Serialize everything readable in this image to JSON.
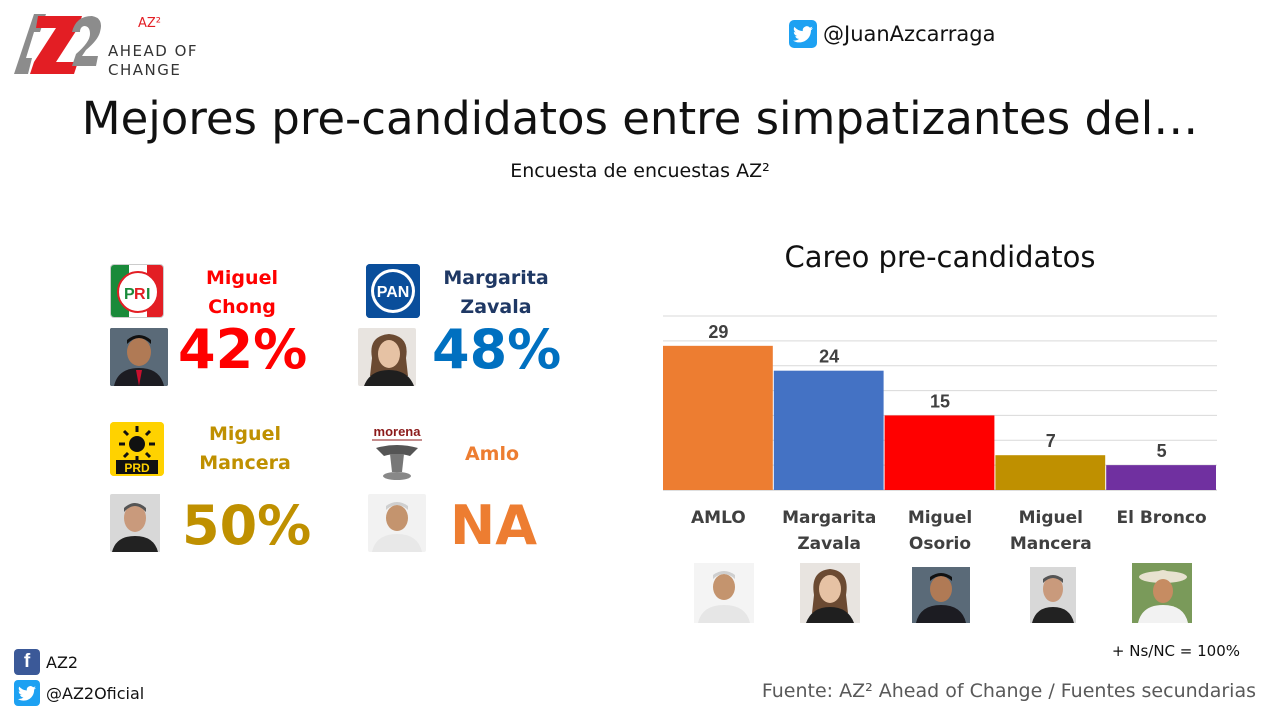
{
  "brand": {
    "mark": "AZ2",
    "sup": "AZ²",
    "line1": "AHEAD OF",
    "line2": "CHANGE"
  },
  "twitter_handle": "@JuanAzcarraga",
  "title": "Mejores pre-candidatos entre simpatizantes del…",
  "subtitle": "Encuesta de encuestas AZ²",
  "candidates": [
    {
      "party": "PRI",
      "name_line1": "Miguel",
      "name_line2": "Chong",
      "percent": "42%",
      "color": "#ff0000"
    },
    {
      "party": "PAN",
      "name_line1": "Margarita",
      "name_line2": "Zavala",
      "percent": "48%",
      "color": "#0070c0"
    },
    {
      "party": "PRD",
      "name_line1": "Miguel",
      "name_line2": "Mancera",
      "percent": "50%",
      "color": "#bf9000"
    },
    {
      "party": "morena",
      "name_line1": "Amlo",
      "name_line2": "",
      "percent": "NA",
      "color": "#ed7d31"
    }
  ],
  "chart_data": {
    "type": "bar",
    "title": "Careo pre-candidatos",
    "categories": [
      "AMLO",
      "Margarita Zavala",
      "Miguel Osorio",
      "Miguel Mancera",
      "El Bronco"
    ],
    "category_lines": [
      [
        "AMLO"
      ],
      [
        "Margarita",
        "Zavala"
      ],
      [
        "Miguel",
        "Osorio"
      ],
      [
        "Miguel",
        "Mancera"
      ],
      [
        "El Bronco"
      ]
    ],
    "values": [
      29,
      24,
      15,
      7,
      5
    ],
    "value_labels": [
      "29",
      "24",
      "15",
      "7",
      "5"
    ],
    "colors": [
      "#ed7d31",
      "#4472c4",
      "#ff0000",
      "#bf9000",
      "#7030a0"
    ],
    "ylim": [
      0,
      35
    ],
    "grid": true,
    "xlabel": "",
    "ylabel": ""
  },
  "footnote": "+ Ns/NC = 100%",
  "source": "Fuente: AZ² Ahead of Change / Fuentes secundarias",
  "social": {
    "facebook": "AZ2",
    "twitter": "@AZ2Oficial"
  },
  "icons": {
    "twitter": "twitter-icon",
    "facebook": "facebook-icon"
  }
}
